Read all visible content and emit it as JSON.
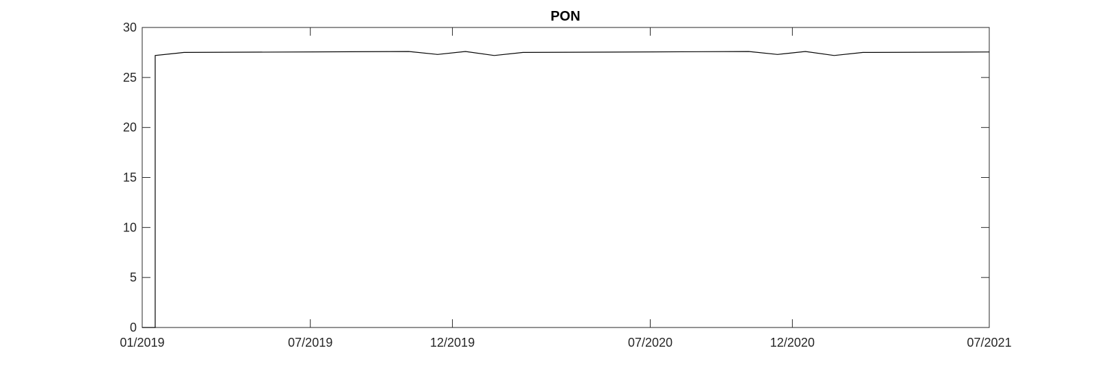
{
  "chart_data": {
    "type": "line",
    "title": "PON",
    "xlabel": "",
    "ylabel": "",
    "x_axis": {
      "type": "date",
      "range": [
        "2019-01-01",
        "2021-07-01"
      ],
      "ticks": [
        {
          "value": "2019-01-01",
          "label": "01/2019"
        },
        {
          "value": "2019-07-01",
          "label": "07/2019"
        },
        {
          "value": "2019-12-01",
          "label": "12/2019"
        },
        {
          "value": "2020-07-01",
          "label": "07/2020"
        },
        {
          "value": "2020-12-01",
          "label": "12/2020"
        },
        {
          "value": "2021-07-01",
          "label": "07/2021"
        }
      ]
    },
    "y_axis": {
      "range": [
        0,
        30
      ],
      "ticks": [
        0,
        5,
        10,
        15,
        20,
        25,
        30
      ]
    },
    "grid": false,
    "box": true,
    "colors": {
      "line": "#000000",
      "axis": "#262626"
    },
    "series": [
      {
        "points": [
          {
            "x": "2019-01-01",
            "y": 0
          },
          {
            "x": "2019-01-15",
            "y": 0
          },
          {
            "x": "2019-01-15",
            "y": 27.2
          },
          {
            "x": "2019-02-15",
            "y": 27.5
          },
          {
            "x": "2019-10-15",
            "y": 27.6
          },
          {
            "x": "2019-11-15",
            "y": 27.3
          },
          {
            "x": "2019-12-15",
            "y": 27.6
          },
          {
            "x": "2020-01-15",
            "y": 27.2
          },
          {
            "x": "2020-02-15",
            "y": 27.5
          },
          {
            "x": "2020-10-15",
            "y": 27.6
          },
          {
            "x": "2020-11-15",
            "y": 27.3
          },
          {
            "x": "2020-12-15",
            "y": 27.6
          },
          {
            "x": "2021-01-15",
            "y": 27.2
          },
          {
            "x": "2021-02-15",
            "y": 27.5
          },
          {
            "x": "2021-07-01",
            "y": 27.55
          }
        ]
      }
    ]
  }
}
